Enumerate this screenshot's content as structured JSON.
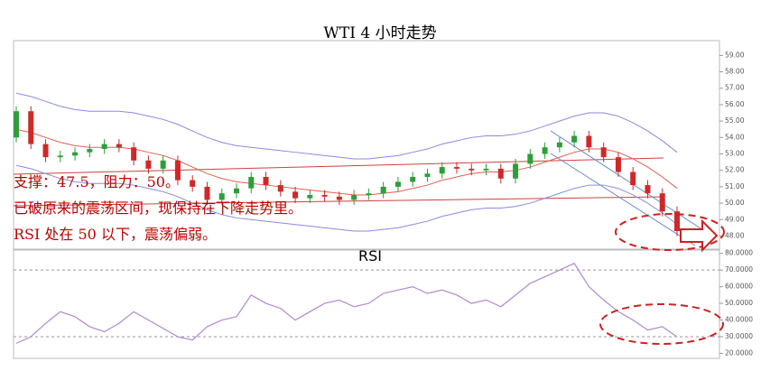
{
  "chart_data": [
    {
      "type": "candlestick",
      "title": "WTI 4 小时走势",
      "annotations": [
        "支撑：47.5，阻力：50。",
        "已破原来的震荡区间，现保持在下降走势里。",
        "RSI 处在 50 以下，震荡偏弱。"
      ],
      "up_color": "#2e9e3a",
      "down_color": "#d02828",
      "open": [
        54.0,
        55.6,
        53.6,
        52.8,
        52.9,
        53.1,
        53.3,
        53.6,
        53.4,
        52.6,
        52.1,
        52.6,
        51.4,
        51.0,
        50.2,
        50.6,
        50.9,
        51.6,
        51.1,
        50.7,
        50.3,
        50.5,
        50.4,
        50.2,
        50.5,
        50.6,
        51.0,
        51.3,
        51.6,
        51.8,
        52.2,
        52.1,
        52.0,
        52.1,
        51.5,
        52.4,
        53.0,
        53.4,
        53.7,
        54.1,
        53.4,
        52.8,
        51.9,
        51.1,
        50.6,
        49.5
      ],
      "high": [
        55.9,
        55.9,
        53.9,
        53.2,
        53.4,
        53.6,
        53.9,
        53.9,
        53.7,
        52.9,
        52.9,
        52.9,
        51.7,
        51.3,
        50.9,
        51.2,
        51.9,
        51.9,
        51.4,
        51.0,
        50.8,
        50.8,
        50.7,
        50.8,
        50.9,
        51.3,
        51.6,
        51.9,
        52.1,
        52.5,
        52.5,
        52.4,
        52.4,
        52.4,
        52.7,
        53.3,
        53.7,
        54.0,
        54.4,
        54.4,
        53.7,
        53.1,
        52.2,
        51.4,
        50.9,
        49.8
      ],
      "low": [
        53.7,
        53.3,
        52.5,
        52.5,
        52.6,
        52.8,
        53.0,
        53.1,
        52.3,
        51.8,
        51.8,
        51.1,
        50.7,
        49.9,
        49.9,
        50.3,
        50.6,
        50.8,
        50.4,
        50.0,
        50.0,
        50.1,
        49.9,
        49.9,
        50.2,
        50.3,
        50.7,
        51.0,
        51.3,
        51.5,
        51.8,
        51.7,
        51.7,
        51.2,
        51.2,
        52.1,
        52.7,
        53.1,
        53.4,
        53.1,
        52.5,
        51.6,
        50.8,
        50.3,
        49.2,
        48.0
      ],
      "close": [
        55.6,
        53.6,
        52.8,
        52.9,
        53.1,
        53.3,
        53.6,
        53.4,
        52.6,
        52.1,
        52.6,
        51.4,
        51.0,
        50.2,
        50.6,
        50.9,
        51.6,
        51.1,
        50.7,
        50.3,
        50.5,
        50.4,
        50.2,
        50.5,
        50.6,
        51.0,
        51.3,
        51.6,
        51.8,
        52.2,
        52.1,
        52.0,
        52.1,
        51.5,
        52.4,
        53.0,
        53.4,
        53.7,
        54.1,
        53.4,
        52.8,
        51.9,
        51.1,
        50.6,
        49.5,
        48.3
      ],
      "series": [
        {
          "color": "#8a8ae0",
          "values": [
            56.7,
            56.5,
            56.2,
            55.9,
            55.7,
            55.6,
            55.6,
            55.6,
            55.5,
            55.3,
            55.1,
            54.8,
            54.4,
            54.0,
            53.7,
            53.5,
            53.4,
            53.3,
            53.2,
            53.1,
            53.0,
            52.9,
            52.8,
            52.7,
            52.7,
            52.8,
            52.9,
            53.1,
            53.3,
            53.6,
            53.8,
            54.0,
            54.1,
            54.1,
            54.2,
            54.4,
            54.7,
            55.0,
            55.3,
            55.5,
            55.5,
            55.3,
            54.9,
            54.4,
            53.8,
            53.1
          ]
        },
        {
          "color": "#e06050",
          "values": [
            54.5,
            54.3,
            54.0,
            53.7,
            53.5,
            53.4,
            53.4,
            53.4,
            53.3,
            53.1,
            52.9,
            52.6,
            52.2,
            51.8,
            51.5,
            51.3,
            51.2,
            51.1,
            51.0,
            50.9,
            50.8,
            50.7,
            50.6,
            50.5,
            50.5,
            50.6,
            50.7,
            50.9,
            51.1,
            51.4,
            51.6,
            51.8,
            51.9,
            51.9,
            52.0,
            52.2,
            52.5,
            52.8,
            53.1,
            53.3,
            53.3,
            53.1,
            52.7,
            52.2,
            51.6,
            50.9
          ]
        },
        {
          "color": "#8a8ae0",
          "values": [
            52.3,
            52.1,
            51.8,
            51.5,
            51.3,
            51.2,
            51.2,
            51.2,
            51.1,
            50.9,
            50.7,
            50.4,
            50.0,
            49.6,
            49.3,
            49.1,
            49.0,
            48.9,
            48.8,
            48.7,
            48.6,
            48.5,
            48.4,
            48.3,
            48.3,
            48.4,
            48.5,
            48.7,
            48.9,
            49.2,
            49.4,
            49.6,
            49.7,
            49.7,
            49.8,
            50.0,
            50.3,
            50.6,
            50.9,
            51.1,
            51.1,
            50.9,
            50.5,
            50.0,
            49.4,
            48.7
          ]
        }
      ],
      "ylim": [
        47.2,
        59.9
      ],
      "yticks": [
        {
          "value": 48,
          "label": "48.00"
        },
        {
          "value": 49,
          "label": "49.00"
        },
        {
          "value": 50,
          "label": "50.00"
        },
        {
          "value": 51,
          "label": "51.00"
        },
        {
          "value": 52,
          "label": "52.00"
        },
        {
          "value": 53,
          "label": "53.00"
        },
        {
          "value": 54,
          "label": "54.00"
        },
        {
          "value": 55,
          "label": "55.00"
        },
        {
          "value": 56,
          "label": "56.00"
        },
        {
          "value": 57,
          "label": "57.00"
        },
        {
          "value": 58,
          "label": "58.00"
        },
        {
          "value": 59,
          "label": "59.00"
        }
      ]
    },
    {
      "type": "line",
      "title": "RSI",
      "color": "#b08ad0",
      "values": [
        26,
        30,
        38,
        45,
        42,
        36,
        33,
        38,
        45,
        40,
        35,
        30,
        28,
        36,
        40,
        42,
        55,
        50,
        47,
        40,
        45,
        50,
        52,
        48,
        50,
        56,
        58,
        60,
        56,
        58,
        55,
        50,
        52,
        48,
        55,
        62,
        66,
        70,
        74,
        60,
        52,
        45,
        40,
        34,
        36,
        30
      ],
      "reference_lines": [
        30,
        70
      ],
      "ylim": [
        17,
        82
      ],
      "yticks": [
        {
          "value": 20,
          "label": "20.0000"
        },
        {
          "value": 30,
          "label": "30.0000"
        },
        {
          "value": 40,
          "label": "40.0000"
        },
        {
          "value": 50,
          "label": "50.0000"
        },
        {
          "value": 60,
          "label": "60.0000"
        },
        {
          "value": 70,
          "label": "70.0000"
        },
        {
          "value": 80,
          "label": "80.0000"
        }
      ]
    }
  ]
}
